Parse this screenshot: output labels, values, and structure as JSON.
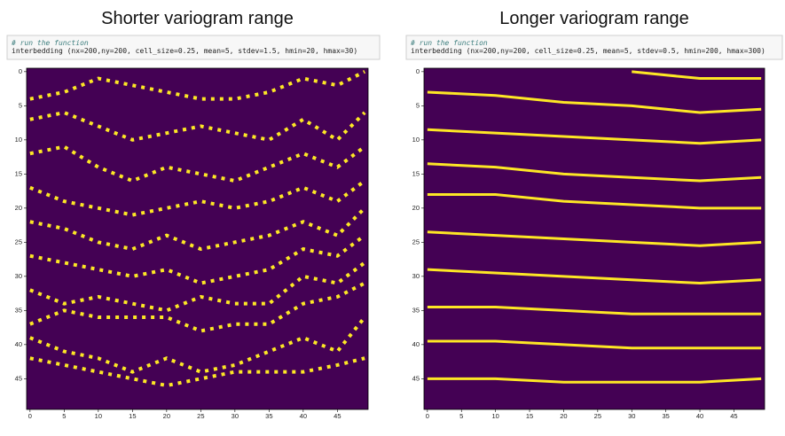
{
  "chart_data": [
    {
      "type": "line",
      "title": "Shorter variogram range",
      "annotations": [
        "# run the function",
        "interbedding (nx=200,ny=200, cell_size=0.25, mean=5, stdev=1.5, hmin=20, hmax=30)"
      ],
      "background": "#440154",
      "color": "#fde725",
      "style": "dotted",
      "x": [
        0,
        5,
        10,
        15,
        20,
        25,
        30,
        35,
        40,
        45,
        49
      ],
      "series": [
        {
          "values": [
            4,
            3,
            1,
            2,
            3,
            4,
            4,
            3,
            1,
            2,
            0
          ]
        },
        {
          "values": [
            7,
            6,
            8,
            10,
            9,
            8,
            9,
            10,
            7,
            10,
            6
          ]
        },
        {
          "values": [
            12,
            11,
            14,
            16,
            14,
            15,
            16,
            14,
            12,
            14,
            11
          ]
        },
        {
          "values": [
            17,
            19,
            20,
            21,
            20,
            19,
            20,
            19,
            17,
            19,
            16
          ]
        },
        {
          "values": [
            22,
            23,
            25,
            26,
            24,
            26,
            25,
            24,
            22,
            24,
            20
          ]
        },
        {
          "values": [
            27,
            28,
            29,
            30,
            29,
            31,
            30,
            29,
            26,
            27,
            24
          ]
        },
        {
          "values": [
            32,
            34,
            33,
            34,
            35,
            33,
            34,
            34,
            30,
            31,
            28
          ]
        },
        {
          "values": [
            37,
            35,
            36,
            36,
            36,
            38,
            37,
            37,
            34,
            33,
            31
          ]
        },
        {
          "values": [
            39,
            41,
            42,
            44,
            42,
            44,
            43,
            41,
            39,
            41,
            36
          ]
        },
        {
          "values": [
            42,
            43,
            44,
            45,
            46,
            45,
            44,
            44,
            44,
            43,
            42
          ]
        }
      ],
      "xlim": [
        -0.5,
        49.5
      ],
      "ylim": [
        49.5,
        -0.5
      ],
      "xticks": [
        0,
        5,
        10,
        15,
        20,
        25,
        30,
        35,
        40,
        45
      ],
      "yticks": [
        0,
        5,
        10,
        15,
        20,
        25,
        30,
        35,
        40,
        45
      ]
    },
    {
      "type": "line",
      "title": "Longer variogram range",
      "annotations": [
        "# run the function",
        "interbedding (nx=200,ny=200, cell_size=0.25, mean=5, stdev=0.5, hmin=200, hmax=300)"
      ],
      "background": "#440154",
      "color": "#fde725",
      "style": "solid",
      "x": [
        0,
        10,
        20,
        30,
        40,
        49
      ],
      "series": [
        {
          "values": [
            null,
            null,
            null,
            0,
            1,
            1
          ]
        },
        {
          "values": [
            3,
            3.5,
            4.5,
            5,
            6,
            5.5
          ]
        },
        {
          "values": [
            8.5,
            9,
            9.5,
            10,
            10.5,
            10
          ]
        },
        {
          "values": [
            13.5,
            14,
            15,
            15.5,
            16,
            15.5
          ]
        },
        {
          "values": [
            18,
            18,
            19,
            19.5,
            20,
            20
          ]
        },
        {
          "values": [
            23.5,
            24,
            24.5,
            25,
            25.5,
            25
          ]
        },
        {
          "values": [
            29,
            29.5,
            30,
            30.5,
            31,
            30.5
          ]
        },
        {
          "values": [
            34.5,
            34.5,
            35,
            35.5,
            35.5,
            35.5
          ]
        },
        {
          "values": [
            39.5,
            39.5,
            40,
            40.5,
            40.5,
            40.5
          ]
        },
        {
          "values": [
            45,
            45,
            45.5,
            45.5,
            45.5,
            45
          ]
        }
      ],
      "xlim": [
        -0.5,
        49.5
      ],
      "ylim": [
        49.5,
        -0.5
      ],
      "xticks": [
        0,
        5,
        10,
        15,
        20,
        25,
        30,
        35,
        40,
        45
      ],
      "yticks": [
        0,
        5,
        10,
        15,
        20,
        25,
        30,
        35,
        40,
        45
      ]
    }
  ]
}
